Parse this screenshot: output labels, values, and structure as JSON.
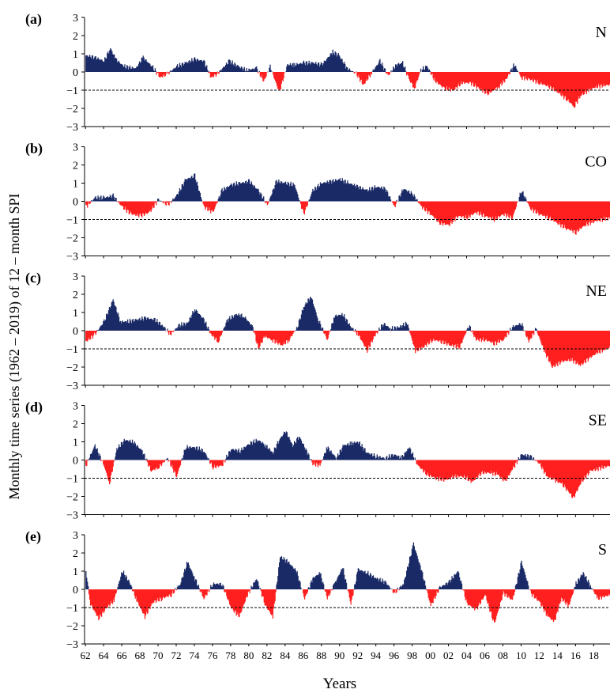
{
  "figure": {
    "ylabel": "Monthly time series (1962 – 2019) of 12 – month  SPI",
    "xlabel": "Years"
  },
  "colors": {
    "positive": "#1a2a66",
    "negative": "#ff1f1f",
    "threshold_line": "#000000",
    "axis": "#000000"
  },
  "chart_data": [
    {
      "type": "area",
      "panel": "(a)",
      "region": "N",
      "x_ticks": [
        "62",
        "64",
        "66",
        "68",
        "70",
        "72",
        "74",
        "76",
        "78",
        "80",
        "82",
        "84",
        "86",
        "88",
        "90",
        "92",
        "94",
        "96",
        "98",
        "00",
        "02",
        "04",
        "06",
        "08",
        "10",
        "12",
        "14",
        "16",
        "18"
      ],
      "y_ticks": [
        3,
        2,
        1,
        0,
        -1,
        -2,
        -3
      ],
      "ylim": [
        -3,
        3
      ],
      "threshold": -1,
      "x": [
        1962.0,
        1963.0,
        1964.0,
        1964.7,
        1965.3,
        1966.2,
        1967.5,
        1968.3,
        1969.3,
        1970.2,
        1971.0,
        1972.0,
        1973.0,
        1974.0,
        1975.0,
        1975.8,
        1976.5,
        1977.8,
        1978.8,
        1979.7,
        1980.8,
        1981.6,
        1982.3,
        1983.3,
        1984.2,
        1985.0,
        1986.0,
        1987.0,
        1988.0,
        1989.2,
        1989.9,
        1990.8,
        1991.8,
        1992.6,
        1993.4,
        1994.4,
        1995.3,
        1996.2,
        1996.9,
        1997.6,
        1998.2,
        1998.9,
        1999.6,
        2000.5,
        2001.5,
        2002.5,
        2003.4,
        2004.4,
        2005.3,
        2006.3,
        2007.5,
        2008.3,
        2009.2,
        2010.0,
        2010.9,
        2012.0,
        2013.0,
        2014.0,
        2015.0,
        2015.8,
        2016.5,
        2017.4,
        2018.3,
        2019.8
      ],
      "values": [
        0.9,
        0.8,
        0.6,
        1.3,
        0.7,
        0.3,
        0.2,
        0.8,
        0.3,
        -0.3,
        -0.1,
        0.3,
        0.5,
        0.7,
        0.6,
        -0.3,
        -0.1,
        0.6,
        0.3,
        0.1,
        0.2,
        -0.5,
        0.3,
        -1.1,
        0.4,
        0.4,
        0.5,
        0.5,
        0.4,
        1.1,
        0.9,
        0.2,
        -0.1,
        -0.7,
        -0.1,
        0.6,
        -0.2,
        0.4,
        0.5,
        -0.4,
        -0.9,
        0.1,
        0.3,
        -0.5,
        -0.9,
        -1.0,
        -0.6,
        -0.6,
        -0.9,
        -1.2,
        -0.8,
        -0.4,
        0.4,
        -0.3,
        -0.4,
        -0.6,
        -0.8,
        -1.1,
        -1.5,
        -1.9,
        -1.3,
        -1.0,
        -0.8,
        -0.7
      ]
    },
    {
      "type": "area",
      "panel": "(b)",
      "region": "CO",
      "x_ticks": [
        "62",
        "64",
        "66",
        "68",
        "70",
        "72",
        "74",
        "76",
        "78",
        "80",
        "82",
        "84",
        "86",
        "88",
        "90",
        "92",
        "94",
        "96",
        "98",
        "00",
        "02",
        "04",
        "06",
        "08",
        "10",
        "12",
        "14",
        "16",
        "18"
      ],
      "y_ticks": [
        3,
        2,
        1,
        0,
        -1,
        -2,
        -3
      ],
      "ylim": [
        -3,
        3
      ],
      "threshold": -1,
      "x": [
        1962.0,
        1963.0,
        1964.0,
        1965.0,
        1966.0,
        1967.0,
        1968.0,
        1969.0,
        1970.0,
        1971.0,
        1972.0,
        1973.0,
        1974.0,
        1975.0,
        1976.0,
        1977.0,
        1978.0,
        1979.0,
        1980.0,
        1981.0,
        1982.0,
        1983.0,
        1984.0,
        1985.0,
        1986.0,
        1987.0,
        1988.0,
        1989.0,
        1990.0,
        1991.0,
        1992.0,
        1993.0,
        1994.0,
        1995.0,
        1996.0,
        1997.0,
        1998.0,
        1999.0,
        2000.0,
        2001.0,
        2002.0,
        2003.0,
        2004.0,
        2005.0,
        2006.0,
        2007.0,
        2008.0,
        2009.0,
        2010.0,
        2011.0,
        2012.0,
        2013.0,
        2014.0,
        2015.0,
        2016.0,
        2017.0,
        2018.0,
        2019.8
      ],
      "values": [
        -0.3,
        0.2,
        0.2,
        0.3,
        -0.3,
        -0.7,
        -0.8,
        -0.6,
        0.1,
        -0.2,
        0.3,
        1.2,
        1.4,
        -0.3,
        -0.6,
        0.6,
        0.9,
        1.0,
        1.1,
        0.6,
        -0.2,
        1.1,
        1.0,
        0.9,
        -0.7,
        0.6,
        1.0,
        1.1,
        1.2,
        1.0,
        0.8,
        0.6,
        0.8,
        0.7,
        -0.3,
        0.7,
        0.4,
        -0.3,
        -0.7,
        -1.2,
        -1.3,
        -0.8,
        -0.9,
        -0.6,
        -0.8,
        -1.0,
        -0.7,
        -0.9,
        0.6,
        -0.4,
        -0.7,
        -0.9,
        -1.2,
        -1.5,
        -1.7,
        -1.3,
        -1.1,
        -0.9
      ]
    },
    {
      "type": "area",
      "panel": "(c)",
      "region": "NE",
      "x_ticks": [
        "62",
        "64",
        "66",
        "68",
        "70",
        "72",
        "74",
        "76",
        "78",
        "80",
        "82",
        "84",
        "86",
        "88",
        "90",
        "92",
        "94",
        "96",
        "98",
        "00",
        "02",
        "04",
        "06",
        "08",
        "10",
        "12",
        "14",
        "16",
        "18"
      ],
      "y_ticks": [
        3,
        2,
        1,
        0,
        -1,
        -2,
        -3
      ],
      "ylim": [
        -3,
        3
      ],
      "threshold": -1,
      "x": [
        1962.0,
        1963.0,
        1964.0,
        1965.0,
        1965.8,
        1966.6,
        1967.6,
        1968.6,
        1969.6,
        1970.4,
        1971.3,
        1972.3,
        1973.2,
        1974.0,
        1975.0,
        1975.8,
        1976.6,
        1977.6,
        1978.6,
        1979.4,
        1980.4,
        1981.0,
        1981.7,
        1982.5,
        1983.6,
        1984.4,
        1985.3,
        1986.0,
        1986.8,
        1987.6,
        1988.6,
        1989.4,
        1990.3,
        1991.2,
        1992.0,
        1993.0,
        1993.8,
        1994.8,
        1995.6,
        1996.5,
        1997.4,
        1998.3,
        1999.2,
        2000.2,
        2001.2,
        2002.2,
        2003.2,
        2004.2,
        2005.0,
        2006.0,
        2007.0,
        2008.0,
        2009.0,
        2010.0,
        2010.8,
        2011.6,
        2012.5,
        2013.4,
        2014.4,
        2015.5,
        2016.5,
        2017.5,
        2018.4,
        2019.8
      ],
      "values": [
        -0.6,
        -0.2,
        0.5,
        1.7,
        0.5,
        0.5,
        0.6,
        0.7,
        0.6,
        0.3,
        -0.2,
        0.3,
        0.4,
        1.2,
        0.6,
        -0.2,
        -0.6,
        0.6,
        0.9,
        0.8,
        0.2,
        -1.0,
        -0.3,
        -0.5,
        -0.8,
        -0.5,
        0.2,
        1.3,
        1.9,
        0.6,
        -0.5,
        0.8,
        0.9,
        0.2,
        -0.2,
        -1.1,
        -0.3,
        0.4,
        0.1,
        0.2,
        0.4,
        -1.1,
        -0.9,
        -0.5,
        -0.6,
        -0.8,
        -0.9,
        0.3,
        -0.5,
        -0.5,
        -0.7,
        -0.5,
        0.2,
        0.4,
        -0.6,
        0.1,
        -1.1,
        -2.0,
        -1.7,
        -1.6,
        -1.9,
        -1.5,
        -1.2,
        -0.9
      ]
    },
    {
      "type": "area",
      "panel": "(d)",
      "region": "SE",
      "x_ticks": [
        "62",
        "64",
        "66",
        "68",
        "70",
        "72",
        "74",
        "76",
        "78",
        "80",
        "82",
        "84",
        "86",
        "88",
        "90",
        "92",
        "94",
        "96",
        "98",
        "00",
        "02",
        "04",
        "06",
        "08",
        "10",
        "12",
        "14",
        "16",
        "18"
      ],
      "y_ticks": [
        3,
        2,
        1,
        0,
        -1,
        -2,
        -3
      ],
      "ylim": [
        -3,
        3
      ],
      "threshold": -1,
      "x": [
        1962.0,
        1963.0,
        1964.0,
        1964.6,
        1965.4,
        1966.3,
        1967.2,
        1968.2,
        1969.2,
        1970.0,
        1971.0,
        1972.0,
        1973.0,
        1974.0,
        1975.0,
        1976.0,
        1977.0,
        1978.0,
        1979.0,
        1980.0,
        1981.0,
        1981.8,
        1982.6,
        1983.3,
        1984.0,
        1984.8,
        1985.5,
        1986.4,
        1987.0,
        1987.8,
        1988.6,
        1989.6,
        1990.4,
        1991.2,
        1992.0,
        1993.0,
        1994.0,
        1995.0,
        1996.0,
        1996.8,
        1997.6,
        1998.6,
        1999.6,
        2000.6,
        2001.6,
        2002.6,
        2003.6,
        2004.6,
        2005.6,
        2006.6,
        2007.4,
        2008.2,
        2009.0,
        2010.0,
        2011.0,
        2012.0,
        2012.8,
        2013.6,
        2014.4,
        2015.0,
        2015.7,
        2016.6,
        2017.6,
        2019.8
      ],
      "values": [
        -0.3,
        0.8,
        -0.3,
        -1.3,
        0.6,
        1.1,
        1.0,
        0.5,
        -0.6,
        -0.4,
        0.1,
        -0.9,
        0.7,
        0.7,
        0.5,
        -0.4,
        -0.3,
        0.6,
        0.5,
        0.9,
        1.1,
        0.8,
        0.4,
        1.1,
        1.6,
        0.8,
        1.3,
        0.4,
        -0.2,
        -0.3,
        0.7,
        0.1,
        0.8,
        0.9,
        1.0,
        0.4,
        0.2,
        0.1,
        0.3,
        0.1,
        0.7,
        -0.3,
        -0.8,
        -1.0,
        -1.1,
        -0.9,
        -0.9,
        -1.2,
        -0.7,
        -0.7,
        -0.8,
        -1.2,
        -0.5,
        0.3,
        0.2,
        -0.2,
        -0.9,
        -1.1,
        -1.3,
        -1.6,
        -2.1,
        -1.2,
        -0.6,
        -0.3
      ]
    },
    {
      "type": "area",
      "panel": "(e)",
      "region": "S",
      "x_ticks": [
        "62",
        "64",
        "66",
        "68",
        "70",
        "72",
        "74",
        "76",
        "78",
        "80",
        "82",
        "84",
        "86",
        "88",
        "90",
        "92",
        "94",
        "96",
        "98",
        "00",
        "02",
        "04",
        "06",
        "08",
        "10",
        "12",
        "14",
        "16",
        "18"
      ],
      "y_ticks": [
        3,
        2,
        1,
        0,
        -1,
        -2,
        -3
      ],
      "ylim": [
        -3,
        3
      ],
      "threshold": -1,
      "x": [
        1962.0,
        1962.5,
        1963.4,
        1964.3,
        1965.1,
        1966.0,
        1966.8,
        1967.6,
        1968.5,
        1969.4,
        1970.4,
        1971.4,
        1972.4,
        1973.2,
        1974.0,
        1975.0,
        1976.0,
        1977.0,
        1978.0,
        1978.9,
        1979.8,
        1980.8,
        1981.8,
        1982.6,
        1983.4,
        1984.3,
        1985.2,
        1986.1,
        1987.0,
        1987.8,
        1988.6,
        1989.4,
        1990.3,
        1991.2,
        1992.0,
        1993.0,
        1994.0,
        1995.0,
        1996.0,
        1997.0,
        1998.1,
        1999.0,
        2000.0,
        2001.0,
        2002.0,
        2003.0,
        2004.0,
        2005.0,
        2006.0,
        2007.0,
        2008.0,
        2009.0,
        2010.0,
        2011.0,
        2012.0,
        2012.8,
        2013.6,
        2014.4,
        2015.2,
        2016.0,
        2016.8,
        2017.6,
        2018.4,
        2019.8
      ],
      "values": [
        1.0,
        -0.8,
        -1.6,
        -1.0,
        -0.6,
        1.0,
        0.4,
        -0.6,
        -1.5,
        -0.7,
        -0.5,
        -0.3,
        0.3,
        1.5,
        0.6,
        -0.5,
        0.3,
        0.3,
        -1.0,
        -1.5,
        -0.3,
        0.6,
        -0.9,
        -1.5,
        1.8,
        1.5,
        1.0,
        -0.5,
        0.6,
        0.9,
        -0.5,
        0.3,
        1.2,
        -0.8,
        1.1,
        0.9,
        0.6,
        0.4,
        -0.2,
        0.3,
        2.5,
        1.0,
        -0.9,
        0.1,
        0.4,
        1.0,
        -0.8,
        -1.1,
        -0.3,
        -1.9,
        -0.2,
        -0.6,
        1.5,
        -0.2,
        -0.7,
        -1.4,
        -1.8,
        -0.5,
        -0.9,
        0.3,
        0.9,
        0.2,
        -0.5,
        -0.3
      ]
    }
  ]
}
